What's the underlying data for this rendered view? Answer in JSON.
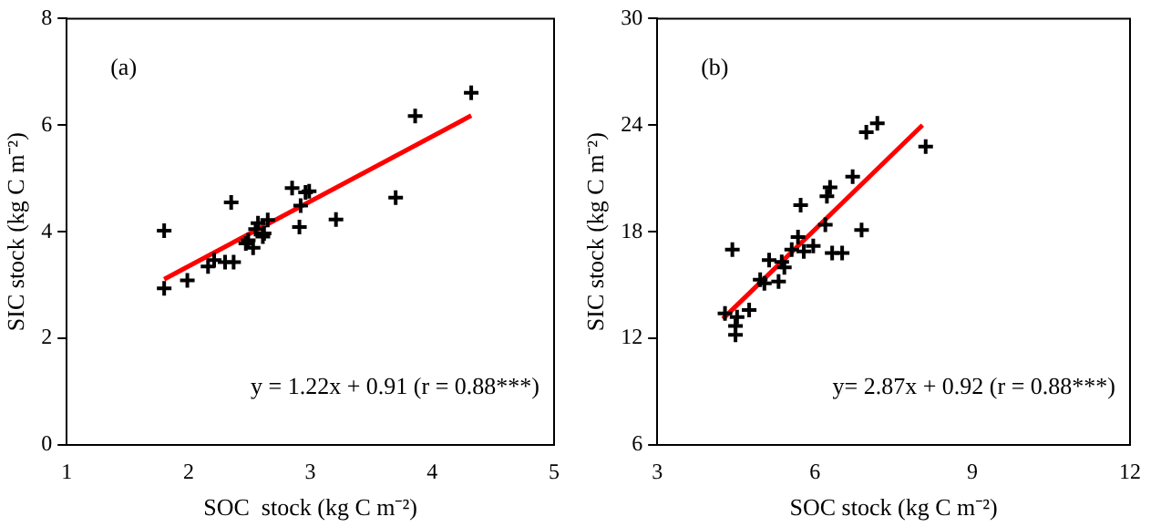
{
  "chart_data": [
    {
      "type": "scatter",
      "xlabel": "SOC  stock (kg C m⁻²)",
      "ylabel": "SIC stock (kg C m⁻²)",
      "marker": "cross",
      "xlim": [
        1,
        5
      ],
      "ylim": [
        0,
        8
      ],
      "xticks": [
        1,
        2,
        3,
        4,
        5
      ],
      "yticks": [
        0,
        2,
        4,
        6,
        8
      ],
      "annotations": [
        "(a)",
        "y = 1.22x + 0.91 (r = 0.88***)"
      ],
      "series": [
        {
          "color": "#000000",
          "x": [
            1.8,
            1.8,
            1.99,
            2.16,
            2.21,
            2.3,
            2.37,
            2.35,
            2.47,
            2.49,
            2.53,
            2.55,
            2.57,
            2.61,
            2.65,
            2.62,
            2.85,
            2.91,
            2.92,
            2.96,
            2.99,
            3.21,
            3.7,
            3.86,
            4.32
          ],
          "values": [
            4.02,
            2.94,
            3.09,
            3.35,
            3.47,
            3.43,
            3.43,
            4.55,
            3.78,
            3.84,
            3.7,
            4.05,
            4.16,
            3.91,
            4.22,
            3.97,
            4.82,
            4.09,
            4.49,
            4.74,
            4.76,
            4.23,
            4.64,
            6.17,
            6.61
          ]
        },
        {
          "type": "line",
          "marker": "none",
          "color": "#ff0000",
          "x": [
            1.8,
            4.32
          ],
          "values": [
            3.11,
            6.18
          ]
        }
      ]
    },
    {
      "type": "scatter",
      "xlabel": "SOC stock (kg C m⁻²)",
      "ylabel": "SIC stock (kg C m⁻²)",
      "marker": "cross",
      "xlim": [
        3,
        12
      ],
      "ylim": [
        6,
        30
      ],
      "xticks": [
        3,
        6,
        9,
        12
      ],
      "yticks": [
        6,
        12,
        18,
        24,
        30
      ],
      "annotations": [
        "(b)",
        "y= 2.87x + 0.92 (r = 0.88***)"
      ],
      "series": [
        {
          "color": "#000000",
          "x": [
            4.29,
            4.43,
            4.52,
            4.49,
            4.49,
            4.75,
            4.96,
            5.04,
            5.13,
            5.31,
            5.37,
            5.42,
            5.56,
            5.68,
            5.73,
            5.79,
            5.97,
            6.2,
            6.23,
            6.29,
            6.33,
            6.52,
            6.72,
            6.89,
            6.98,
            7.19,
            8.11
          ],
          "values": [
            13.4,
            17.0,
            13.2,
            12.7,
            12.2,
            13.6,
            15.3,
            15.1,
            16.4,
            15.2,
            16.3,
            16.0,
            17.0,
            17.7,
            19.5,
            16.9,
            17.2,
            18.4,
            20.0,
            20.5,
            16.8,
            16.8,
            21.1,
            18.1,
            23.6,
            24.1,
            22.8
          ]
        },
        {
          "type": "line",
          "marker": "none",
          "color": "#ff0000",
          "x": [
            4.25,
            8.05
          ],
          "values": [
            13.1,
            24.0
          ]
        }
      ]
    }
  ]
}
